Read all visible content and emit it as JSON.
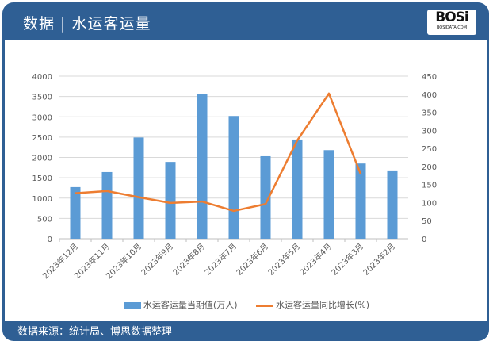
{
  "header": {
    "title": "数据 | 水运客运量",
    "logo_text": "BOSi",
    "logo_sub": "BOSIDATA.COM"
  },
  "footer": {
    "source": "数据来源：统计局、博思数据整理"
  },
  "colors": {
    "bar": "#5b9bd5",
    "line": "#ed7d31",
    "header": "#2f5f94"
  },
  "chart_data": {
    "type": "bar+line",
    "categories": [
      "2023年12月",
      "2023年11月",
      "2023年10月",
      "2023年9月",
      "2023年8月",
      "2023年7月",
      "2023年6月",
      "2023年5月",
      "2023年4月",
      "2023年3月",
      "2023年2月"
    ],
    "series": [
      {
        "name": "水运客运量当期值(万人)",
        "type": "bar",
        "axis": "left",
        "values": [
          1270,
          1640,
          2490,
          1890,
          3570,
          3020,
          2030,
          2440,
          2180,
          1850,
          1680
        ]
      },
      {
        "name": "水运客运量同比增长(%)",
        "type": "line",
        "axis": "right",
        "values": [
          126,
          132,
          115,
          99,
          103,
          77,
          96,
          272,
          402,
          179,
          null
        ]
      }
    ],
    "left_axis": {
      "min": 0,
      "max": 4000,
      "ticks": [
        "0",
        "500",
        "1000",
        "1500",
        "2000",
        "2500",
        "3000",
        "3500",
        "4000"
      ]
    },
    "right_axis": {
      "min": 0,
      "max": 450,
      "ticks": [
        "0",
        "50",
        "100",
        "150",
        "200",
        "250",
        "300",
        "350",
        "400",
        "450"
      ]
    },
    "grid": true,
    "legend": "bottom"
  }
}
